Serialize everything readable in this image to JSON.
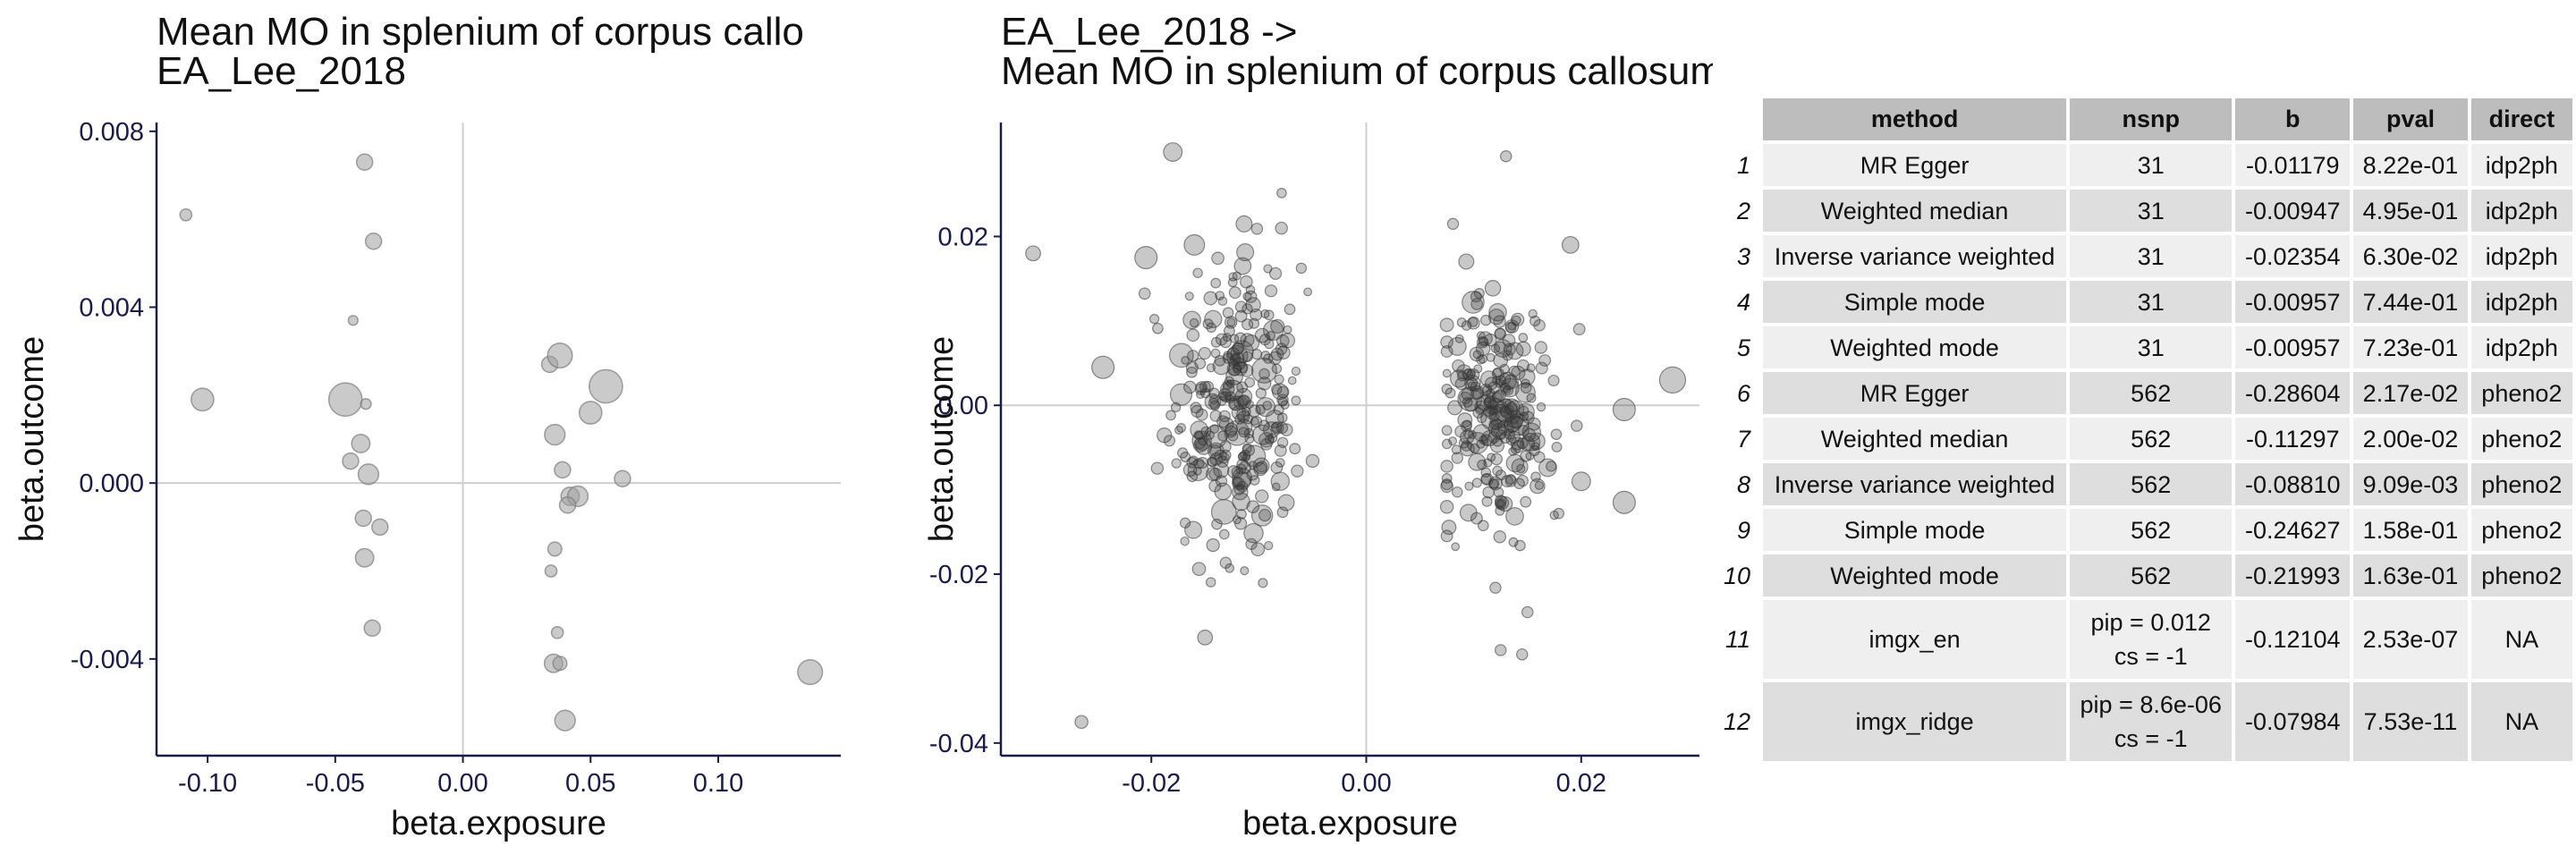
{
  "chart_data": [
    {
      "type": "scatter",
      "title": [
        "Mean MO in splenium of corpus callo",
        " EA_Lee_2018"
      ],
      "xlabel": "beta.exposure",
      "ylabel": "beta.outcome",
      "xlim": [
        -0.12,
        0.148
      ],
      "ylim": [
        -0.0062,
        0.0082
      ],
      "xticks": [
        -0.1,
        -0.05,
        0.0,
        0.05,
        0.1
      ],
      "xtick_labels": [
        "-0.10",
        "-0.05",
        "0.00",
        "0.05",
        "0.10"
      ],
      "yticks": [
        -0.004,
        0.0,
        0.004,
        0.008
      ],
      "ytick_labels": [
        "-0.004",
        "0.000",
        "0.004",
        "0.008"
      ],
      "grid": false,
      "reference_lines": {
        "x": 0,
        "y": 0
      },
      "point_color": "#9e9e9e",
      "points": [
        {
          "x": -0.1085,
          "y": 0.0061,
          "s": 1.5
        },
        {
          "x": -0.102,
          "y": 0.0019,
          "s": 4
        },
        {
          "x": -0.043,
          "y": 0.0037,
          "s": 1
        },
        {
          "x": -0.046,
          "y": 0.0019,
          "s": 6.5
        },
        {
          "x": -0.0385,
          "y": 0.0073,
          "s": 2.5
        },
        {
          "x": -0.035,
          "y": 0.0055,
          "s": 2.5
        },
        {
          "x": -0.038,
          "y": 0.0018,
          "s": 1.2
        },
        {
          "x": -0.04,
          "y": 0.0009,
          "s": 3
        },
        {
          "x": -0.044,
          "y": 0.0005,
          "s": 2.5
        },
        {
          "x": -0.037,
          "y": 0.0002,
          "s": 3.5
        },
        {
          "x": -0.039,
          "y": -0.0008,
          "s": 2.5
        },
        {
          "x": -0.0325,
          "y": -0.001,
          "s": 2.5
        },
        {
          "x": -0.0385,
          "y": -0.0017,
          "s": 3
        },
        {
          "x": -0.0355,
          "y": -0.0033,
          "s": 2.5
        },
        {
          "x": 0.034,
          "y": 0.0027,
          "s": 2.5
        },
        {
          "x": 0.038,
          "y": 0.0029,
          "s": 4.5
        },
        {
          "x": 0.05,
          "y": 0.0016,
          "s": 4
        },
        {
          "x": 0.056,
          "y": 0.0022,
          "s": 6.5
        },
        {
          "x": 0.036,
          "y": 0.0011,
          "s": 3.5
        },
        {
          "x": 0.039,
          "y": 0.0003,
          "s": 2.5
        },
        {
          "x": 0.042,
          "y": -0.0003,
          "s": 3
        },
        {
          "x": 0.045,
          "y": -0.0003,
          "s": 3.5
        },
        {
          "x": 0.041,
          "y": -0.0005,
          "s": 2.5
        },
        {
          "x": 0.0625,
          "y": 0.0001,
          "s": 2.5
        },
        {
          "x": 0.036,
          "y": -0.0015,
          "s": 2
        },
        {
          "x": 0.0345,
          "y": -0.002,
          "s": 1.5
        },
        {
          "x": 0.037,
          "y": -0.0034,
          "s": 1.5
        },
        {
          "x": 0.0355,
          "y": -0.0041,
          "s": 3
        },
        {
          "x": 0.038,
          "y": -0.0041,
          "s": 2
        },
        {
          "x": 0.04,
          "y": -0.0054,
          "s": 3.5
        },
        {
          "x": 0.136,
          "y": -0.0043,
          "s": 4.5
        }
      ]
    },
    {
      "type": "scatter",
      "title": [
        "EA_Lee_2018 ->",
        " Mean MO in splenium of corpus callosum on FA skeleton"
      ],
      "xlabel": "beta.exposure",
      "ylabel": "beta.outcome",
      "xlim": [
        -0.034,
        0.031
      ],
      "ylim": [
        -0.0415,
        0.0335
      ],
      "xticks": [
        -0.02,
        0.0,
        0.02
      ],
      "xtick_labels": [
        "-0.02",
        "0.00",
        "0.02"
      ],
      "yticks": [
        -0.04,
        -0.02,
        0.0,
        0.02
      ],
      "ytick_labels": [
        "-0.04",
        "-0.02",
        "0.00",
        "0.02"
      ],
      "grid": false,
      "reference_lines": {
        "x": 0,
        "y": 0
      },
      "point_color": "#3a3a3a",
      "n_points": 562,
      "clusters": [
        {
          "x_mean": -0.012,
          "x_sd": 0.003,
          "y_mean": 0.0,
          "y_sd": 0.009,
          "n": 300
        },
        {
          "x_mean": 0.012,
          "x_sd": 0.0026,
          "y_mean": -0.001,
          "y_sd": 0.0075,
          "n": 262
        }
      ],
      "notable_points": [
        {
          "x": -0.031,
          "y": 0.018,
          "s": 2.5
        },
        {
          "x": -0.0265,
          "y": -0.0375,
          "s": 2
        },
        {
          "x": -0.0245,
          "y": 0.0045,
          "s": 4.5
        },
        {
          "x": -0.0205,
          "y": 0.0175,
          "s": 4.5
        },
        {
          "x": -0.018,
          "y": 0.03,
          "s": 3.5
        },
        {
          "x": -0.016,
          "y": 0.019,
          "s": 4
        },
        {
          "x": -0.015,
          "y": -0.0275,
          "s": 2.5
        },
        {
          "x": -0.0115,
          "y": 0.0165,
          "s": 3
        },
        {
          "x": 0.013,
          "y": 0.0295,
          "s": 1.5
        },
        {
          "x": 0.019,
          "y": 0.019,
          "s": 3
        },
        {
          "x": 0.024,
          "y": -0.0005,
          "s": 4.5
        },
        {
          "x": 0.0285,
          "y": 0.003,
          "s": 5.5
        },
        {
          "x": 0.024,
          "y": -0.0115,
          "s": 4.5
        },
        {
          "x": 0.02,
          "y": -0.009,
          "s": 3.5
        },
        {
          "x": 0.0125,
          "y": -0.029,
          "s": 1.5
        },
        {
          "x": 0.0145,
          "y": -0.0295,
          "s": 1.5
        },
        {
          "x": 0.015,
          "y": -0.0245,
          "s": 1.5
        }
      ]
    },
    {
      "type": "table",
      "columns": [
        "method",
        "nsnp",
        "b",
        "pval",
        "direct"
      ],
      "rows": [
        {
          "n": "1",
          "method": "MR Egger",
          "nsnp": "31",
          "b": "-0.01179",
          "pval": "8.22e-01",
          "direct": "idp2ph"
        },
        {
          "n": "2",
          "method": "Weighted median",
          "nsnp": "31",
          "b": "-0.00947",
          "pval": "4.95e-01",
          "direct": "idp2ph"
        },
        {
          "n": "3",
          "method": "Inverse variance weighted",
          "nsnp": "31",
          "b": "-0.02354",
          "pval": "6.30e-02",
          "direct": "idp2ph"
        },
        {
          "n": "4",
          "method": "Simple mode",
          "nsnp": "31",
          "b": "-0.00957",
          "pval": "7.44e-01",
          "direct": "idp2ph"
        },
        {
          "n": "5",
          "method": "Weighted mode",
          "nsnp": "31",
          "b": "-0.00957",
          "pval": "7.23e-01",
          "direct": "idp2ph"
        },
        {
          "n": "6",
          "method": "MR Egger",
          "nsnp": "562",
          "b": "-0.28604",
          "pval": "2.17e-02",
          "direct": "pheno2"
        },
        {
          "n": "7",
          "method": "Weighted median",
          "nsnp": "562",
          "b": "-0.11297",
          "pval": "2.00e-02",
          "direct": "pheno2"
        },
        {
          "n": "8",
          "method": "Inverse variance weighted",
          "nsnp": "562",
          "b": "-0.08810",
          "pval": "9.09e-03",
          "direct": "pheno2"
        },
        {
          "n": "9",
          "method": "Simple mode",
          "nsnp": "562",
          "b": "-0.24627",
          "pval": "1.58e-01",
          "direct": "pheno2"
        },
        {
          "n": "10",
          "method": "Weighted mode",
          "nsnp": "562",
          "b": "-0.21993",
          "pval": "1.63e-01",
          "direct": "pheno2"
        },
        {
          "n": "11",
          "method": "imgx_en",
          "nsnp": [
            "pip = 0.012",
            "cs = -1"
          ],
          "b": "-0.12104",
          "pval": "2.53e-07",
          "direct": "NA"
        },
        {
          "n": "12",
          "method": "imgx_ridge",
          "nsnp": [
            "pip = 8.6e-06",
            "cs = -1"
          ],
          "b": "-0.07984",
          "pval": "7.53e-11",
          "direct": "NA"
        }
      ]
    }
  ]
}
